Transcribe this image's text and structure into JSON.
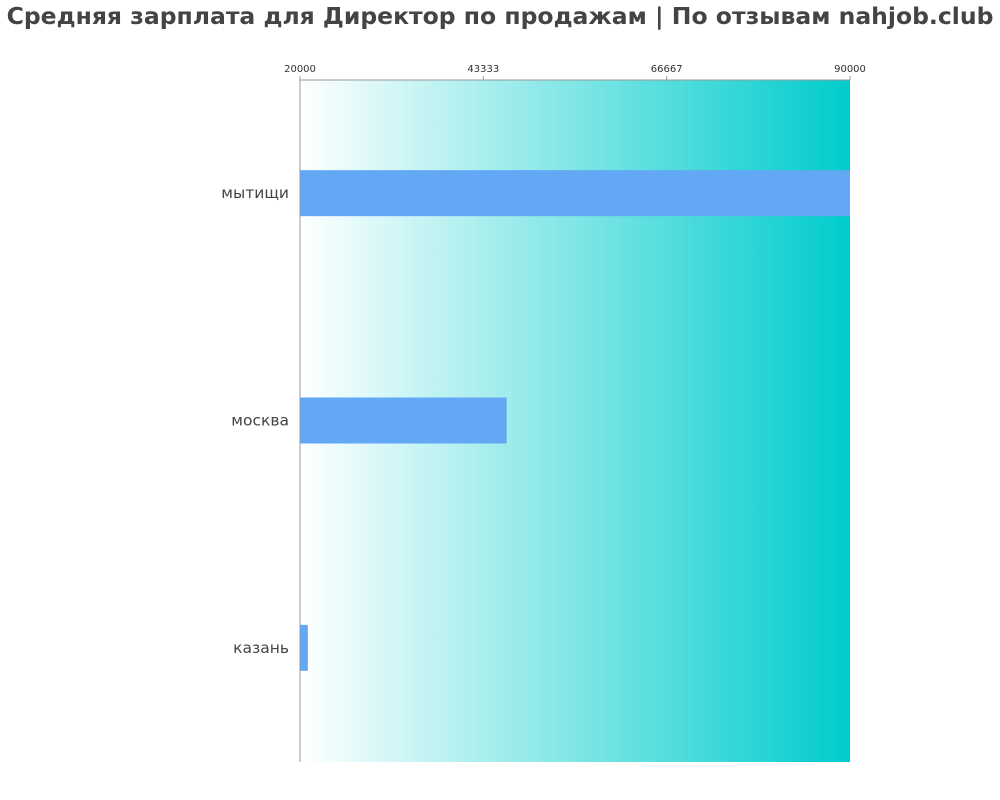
{
  "chart_data": {
    "type": "bar",
    "orientation": "horizontal",
    "title": "Средняя зарплата для Директор по продажам | По отзывам nahjob.club",
    "categories": [
      "мытищи",
      "москва",
      "казань"
    ],
    "values": [
      90000,
      46300,
      21000
    ],
    "xlim": [
      20000,
      90000
    ],
    "ticks": [
      "20000",
      "43333",
      "66667",
      "90000"
    ],
    "tick_values": [
      20000,
      43333,
      66667,
      90000
    ],
    "axis_position": "top",
    "grid": false,
    "legend": "none",
    "colors": {
      "bar": "#63a8f5",
      "background_start": "#ffffff",
      "background_end": "#00cccc",
      "axis": "#999999",
      "text": "#444444"
    }
  }
}
